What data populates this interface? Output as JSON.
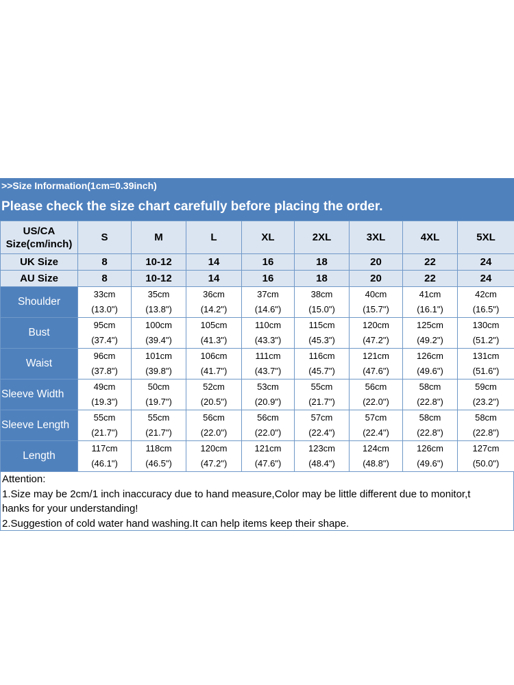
{
  "header": {
    "info": ">>Size Information(1cm=0.39inch)",
    "notice": "Please check the size chart carefully before placing the order."
  },
  "table": {
    "corner_line1": "US/CA",
    "corner_line2": "Size(cm/inch)",
    "sizes": [
      "S",
      "M",
      "L",
      "XL",
      "2XL",
      "3XL",
      "4XL",
      "5XL"
    ],
    "uk": {
      "label": "UK Size",
      "values": [
        "8",
        "10-12",
        "14",
        "16",
        "18",
        "20",
        "22",
        "24"
      ]
    },
    "au": {
      "label": "AU Size",
      "values": [
        "8",
        "10-12",
        "14",
        "16",
        "18",
        "20",
        "22",
        "24"
      ]
    },
    "measurements": [
      {
        "label": "Shoulder",
        "cm": [
          "33cm",
          "35cm",
          "36cm",
          "37cm",
          "38cm",
          "40cm",
          "41cm",
          "42cm"
        ],
        "inch": [
          "(13.0\")",
          "(13.8\")",
          "(14.2\")",
          "(14.6\")",
          "(15.0\")",
          "(15.7\")",
          "(16.1\")",
          "(16.5\")"
        ]
      },
      {
        "label": "Bust",
        "cm": [
          "95cm",
          "100cm",
          "105cm",
          "110cm",
          "115cm",
          "120cm",
          "125cm",
          "130cm"
        ],
        "inch": [
          "(37.4\")",
          "(39.4\")",
          "(41.3\")",
          "(43.3\")",
          "(45.3\")",
          "(47.2\")",
          "(49.2\")",
          "(51.2\")"
        ]
      },
      {
        "label": "Waist",
        "cm": [
          "96cm",
          "101cm",
          "106cm",
          "111cm",
          "116cm",
          "121cm",
          "126cm",
          "131cm"
        ],
        "inch": [
          "(37.8\")",
          "(39.8\")",
          "(41.7\")",
          "(43.7\")",
          "(45.7\")",
          "(47.6\")",
          "(49.6\")",
          "(51.6\")"
        ]
      },
      {
        "label": "Sleeve Width",
        "cm": [
          "49cm",
          "50cm",
          "52cm",
          "53cm",
          "55cm",
          "56cm",
          "58cm",
          "59cm"
        ],
        "inch": [
          "(19.3\")",
          "(19.7\")",
          "(20.5\")",
          "(20.9\")",
          "(21.7\")",
          "(22.0\")",
          "(22.8\")",
          "(23.2\")"
        ]
      },
      {
        "label": "Sleeve Length",
        "cm": [
          "55cm",
          "55cm",
          "56cm",
          "56cm",
          "57cm",
          "57cm",
          "58cm",
          "58cm"
        ],
        "inch": [
          "(21.7\")",
          "(21.7\")",
          "(22.0\")",
          "(22.0\")",
          "(22.4\")",
          "(22.4\")",
          "(22.8\")",
          "(22.8\")"
        ]
      },
      {
        "label": "Length",
        "cm": [
          "117cm",
          "118cm",
          "120cm",
          "121cm",
          "123cm",
          "124cm",
          "126cm",
          "127cm"
        ],
        "inch": [
          "(46.1\")",
          "(46.5\")",
          "(47.2\")",
          "(47.6\")",
          "(48.4\")",
          "(48.8\")",
          "(49.6\")",
          "(50.0\")"
        ]
      }
    ]
  },
  "attention": {
    "title": "Attention:",
    "line1a": "1.Size may be 2cm/1 inch inaccuracy due to hand measure,Color may be little different due to monitor,t",
    "line1b": "hanks for your understanding!",
    "line2": "2.Suggestion of cold water hand washing.It can help items keep their shape."
  },
  "colors": {
    "banner": "#4f81bd",
    "header_cells": "#dbe5f1",
    "label_cells": "#4f81bd",
    "grid_border": "#6f98c8"
  }
}
